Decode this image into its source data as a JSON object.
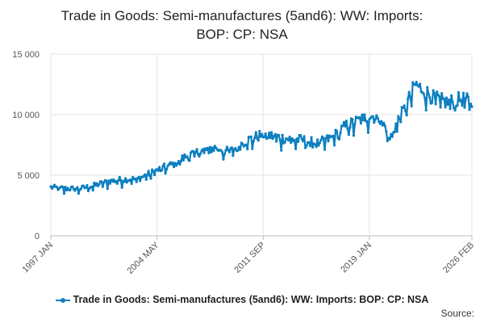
{
  "chart_data": {
    "type": "line",
    "title_lines": [
      "Trade in Goods: Semi-manufactures (5and6): WW: Imports:",
      "BOP: CP: NSA"
    ],
    "xlabel": "",
    "ylabel": "",
    "ylim": [
      0,
      15000
    ],
    "y_ticks": [
      0,
      5000,
      10000,
      15000
    ],
    "y_tick_labels": [
      "0",
      "5 000",
      "10 000",
      "15 000"
    ],
    "x_range": [
      "1997 JAN",
      "2026 FEB"
    ],
    "x_tick_labels": [
      "1997 JAN",
      "2004 MAY",
      "2011 SEP",
      "2019 JAN",
      "2026 FEB"
    ],
    "grid": true,
    "legend_position": "bottom",
    "series": [
      {
        "name": "Trade in Goods: Semi-manufactures (5and6): WW: Imports: BOP: CP: NSA",
        "color": "#0d7fc0",
        "anchors": [
          [
            "1997-01",
            4000
          ],
          [
            "1998-01",
            3900
          ],
          [
            "1999-01",
            3900
          ],
          [
            "2000-01",
            4150
          ],
          [
            "2001-01",
            4500
          ],
          [
            "2002-01",
            4650
          ],
          [
            "2003-01",
            4700
          ],
          [
            "2004-05",
            5400
          ],
          [
            "2005-06",
            5900
          ],
          [
            "2006-06",
            6600
          ],
          [
            "2007-06",
            7000
          ],
          [
            "2008-06",
            7300
          ],
          [
            "2009-05",
            6900
          ],
          [
            "2010-06",
            7800
          ],
          [
            "2011-09",
            8400
          ],
          [
            "2012-06",
            8200
          ],
          [
            "2013-06",
            8000
          ],
          [
            "2014-06",
            7900
          ],
          [
            "2015-06",
            7600
          ],
          [
            "2016-06",
            8100
          ],
          [
            "2017-06",
            9100
          ],
          [
            "2018-06",
            9600
          ],
          [
            "2019-01",
            9900
          ],
          [
            "2019-12",
            9700
          ],
          [
            "2020-05",
            7800
          ],
          [
            "2020-12",
            9400
          ],
          [
            "2021-06",
            10400
          ],
          [
            "2022-03",
            12500
          ],
          [
            "2022-08",
            12200
          ],
          [
            "2023-06",
            11400
          ],
          [
            "2024-06",
            11000
          ],
          [
            "2025-06",
            11300
          ],
          [
            "2026-02",
            11000
          ]
        ]
      }
    ]
  },
  "legend": {
    "label": "Trade in Goods: Semi-manufactures (5and6): WW: Imports: BOP: CP: NSA"
  },
  "source": {
    "label": "Source:"
  }
}
